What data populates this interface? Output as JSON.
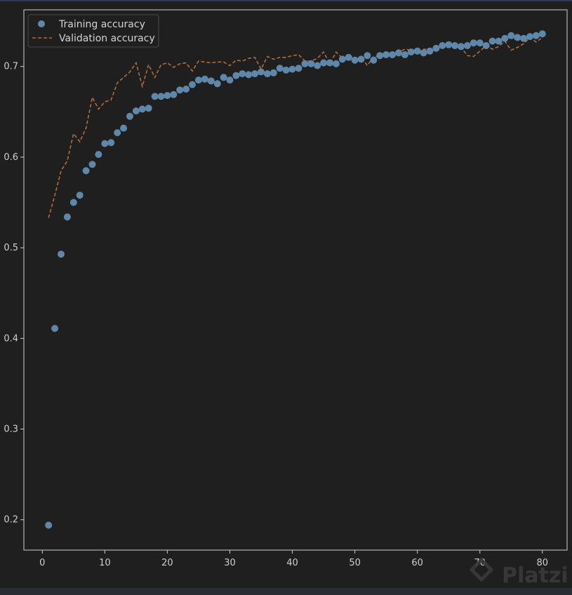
{
  "chart_data": {
    "type": "line",
    "title": "",
    "xlabel": "",
    "ylabel": "",
    "xlim": [
      -2.95,
      83.95
    ],
    "ylim": [
      0.1665,
      0.7625
    ],
    "xticks": [
      0,
      10,
      20,
      30,
      40,
      50,
      60,
      70,
      80
    ],
    "yticks": [
      0.2,
      0.3,
      0.4,
      0.5,
      0.6,
      0.7
    ],
    "grid": false,
    "legend_position": "upper-left",
    "series": [
      {
        "name": "Training accuracy",
        "style": "markers",
        "color": "#5f87aa",
        "x": [
          1,
          2,
          3,
          4,
          5,
          6,
          7,
          8,
          9,
          10,
          11,
          12,
          13,
          14,
          15,
          16,
          17,
          18,
          19,
          20,
          21,
          22,
          23,
          24,
          25,
          26,
          27,
          28,
          29,
          30,
          31,
          32,
          33,
          34,
          35,
          36,
          37,
          38,
          39,
          40,
          41,
          42,
          43,
          44,
          45,
          46,
          47,
          48,
          49,
          50,
          51,
          52,
          53,
          54,
          55,
          56,
          57,
          58,
          59,
          60,
          61,
          62,
          63,
          64,
          65,
          66,
          67,
          68,
          69,
          70,
          71,
          72,
          73,
          74,
          75,
          76,
          77,
          78,
          79,
          80
        ],
        "y": [
          0.194,
          0.411,
          0.493,
          0.534,
          0.55,
          0.558,
          0.585,
          0.592,
          0.603,
          0.615,
          0.616,
          0.627,
          0.632,
          0.645,
          0.651,
          0.653,
          0.654,
          0.667,
          0.667,
          0.668,
          0.669,
          0.674,
          0.675,
          0.68,
          0.685,
          0.686,
          0.684,
          0.681,
          0.688,
          0.685,
          0.69,
          0.692,
          0.691,
          0.692,
          0.694,
          0.692,
          0.693,
          0.698,
          0.696,
          0.697,
          0.698,
          0.703,
          0.703,
          0.701,
          0.704,
          0.704,
          0.703,
          0.708,
          0.71,
          0.707,
          0.708,
          0.712,
          0.707,
          0.712,
          0.713,
          0.713,
          0.715,
          0.713,
          0.716,
          0.717,
          0.715,
          0.717,
          0.72,
          0.723,
          0.724,
          0.723,
          0.722,
          0.723,
          0.726,
          0.726,
          0.723,
          0.728,
          0.728,
          0.731,
          0.734,
          0.732,
          0.731,
          0.733,
          0.734,
          0.736
        ]
      },
      {
        "name": "Validation accuracy",
        "style": "dashed",
        "color": "#b06c3e",
        "x": [
          1,
          2,
          3,
          4,
          5,
          6,
          7,
          8,
          9,
          10,
          11,
          12,
          13,
          14,
          15,
          16,
          17,
          18,
          19,
          20,
          21,
          22,
          23,
          24,
          25,
          26,
          27,
          28,
          29,
          30,
          31,
          32,
          33,
          34,
          35,
          36,
          37,
          38,
          39,
          40,
          41,
          42,
          43,
          44,
          45,
          46,
          47,
          48,
          49,
          50,
          51,
          52,
          53,
          54,
          55,
          56,
          57,
          58,
          59,
          60,
          61,
          62,
          63,
          64,
          65,
          66,
          67,
          68,
          69,
          70,
          71,
          72,
          73,
          74,
          75,
          76,
          77,
          78,
          79,
          80
        ],
        "y": [
          0.533,
          0.558,
          0.585,
          0.596,
          0.626,
          0.617,
          0.632,
          0.666,
          0.653,
          0.661,
          0.663,
          0.682,
          0.688,
          0.694,
          0.704,
          0.678,
          0.702,
          0.688,
          0.702,
          0.704,
          0.699,
          0.703,
          0.704,
          0.695,
          0.706,
          0.705,
          0.704,
          0.705,
          0.705,
          0.701,
          0.707,
          0.706,
          0.709,
          0.71,
          0.697,
          0.711,
          0.708,
          0.71,
          0.71,
          0.712,
          0.713,
          0.706,
          0.706,
          0.709,
          0.716,
          0.703,
          0.716,
          0.709,
          0.711,
          0.706,
          0.711,
          0.701,
          0.711,
          0.711,
          0.716,
          0.714,
          0.716,
          0.719,
          0.718,
          0.716,
          0.719,
          0.719,
          0.721,
          0.723,
          0.724,
          0.726,
          0.721,
          0.712,
          0.711,
          0.717,
          0.723,
          0.719,
          0.722,
          0.728,
          0.718,
          0.721,
          0.725,
          0.732,
          0.727,
          0.732
        ]
      }
    ]
  },
  "watermark": "Platzi"
}
